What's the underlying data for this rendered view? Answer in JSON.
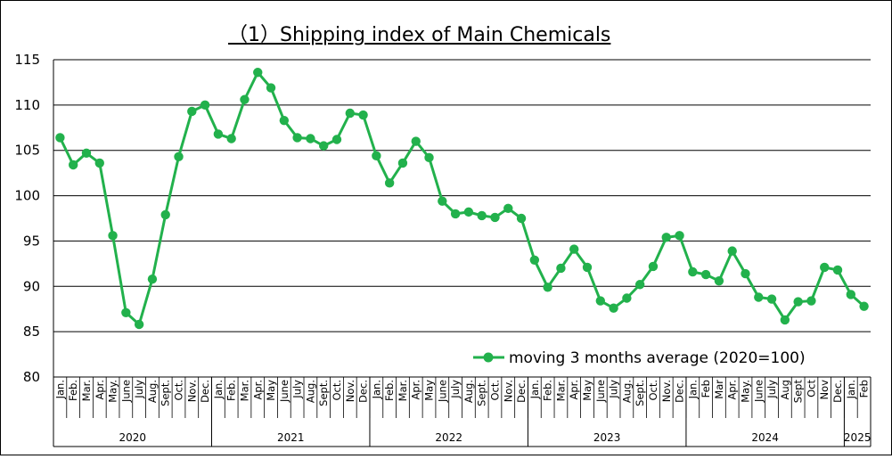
{
  "chart_data": {
    "type": "line",
    "title": "（1）Shipping index of Main Chemicals",
    "ylim": [
      80,
      115
    ],
    "yticks": [
      80,
      85,
      90,
      95,
      100,
      105,
      110,
      115
    ],
    "grid": true,
    "legend_position": "bottom-right",
    "colors": {
      "series": "#22b14c",
      "grid": "#000000"
    },
    "months": [
      "Jan.",
      "Feb.",
      "Mar.",
      "Apr.",
      "May.",
      "June",
      "July",
      "Aug.",
      "Sept.",
      "Oct.",
      "Nov.",
      "Dec.",
      "Jan.",
      "Feb.",
      "Mar.",
      "Apr.",
      "May",
      "June",
      "July",
      "Aug.",
      "Sept.",
      "Oct.",
      "Nov.",
      "Dec.",
      "Jan.",
      "Feb.",
      "Mar.",
      "Apr.",
      "May",
      "June",
      "July",
      "Aug.",
      "Sept.",
      "Oct.",
      "Nov.",
      "Dec.",
      "Jan.",
      "Feb.",
      "Mar.",
      "Apr.",
      "May",
      "June",
      "July",
      "Aug.",
      "Sept.",
      "Oct.",
      "Nov.",
      "Dec.",
      "Jan.",
      "Feb",
      "Mar",
      "Apr.",
      "May.",
      "June",
      "July",
      "Aug",
      "Sept",
      "Oct",
      "Nov",
      "Dec.",
      "Jan.",
      "Feb"
    ],
    "years": [
      {
        "label": "2020",
        "months": 12
      },
      {
        "label": "2021",
        "months": 12
      },
      {
        "label": "2022",
        "months": 12
      },
      {
        "label": "2023",
        "months": 12
      },
      {
        "label": "2024",
        "months": 12
      },
      {
        "label": "2025",
        "months": 2
      }
    ],
    "series": [
      {
        "name": "moving 3 months average (2020=100)",
        "values": [
          106.4,
          103.4,
          104.7,
          103.6,
          95.6,
          87.1,
          85.8,
          90.8,
          97.9,
          104.3,
          109.3,
          110.0,
          106.8,
          106.3,
          110.6,
          113.6,
          111.9,
          108.3,
          106.4,
          106.3,
          105.5,
          106.2,
          109.1,
          108.9,
          104.4,
          101.4,
          103.6,
          106.0,
          104.2,
          99.4,
          98.0,
          98.2,
          97.8,
          97.6,
          98.6,
          97.5,
          92.9,
          89.9,
          92.0,
          94.1,
          92.1,
          88.4,
          87.6,
          88.7,
          90.2,
          92.2,
          95.4,
          95.6,
          91.6,
          91.3,
          90.6,
          93.9,
          91.4,
          88.8,
          88.6,
          86.3,
          88.3,
          88.4,
          92.1,
          91.8,
          89.1,
          87.8
        ]
      }
    ]
  }
}
